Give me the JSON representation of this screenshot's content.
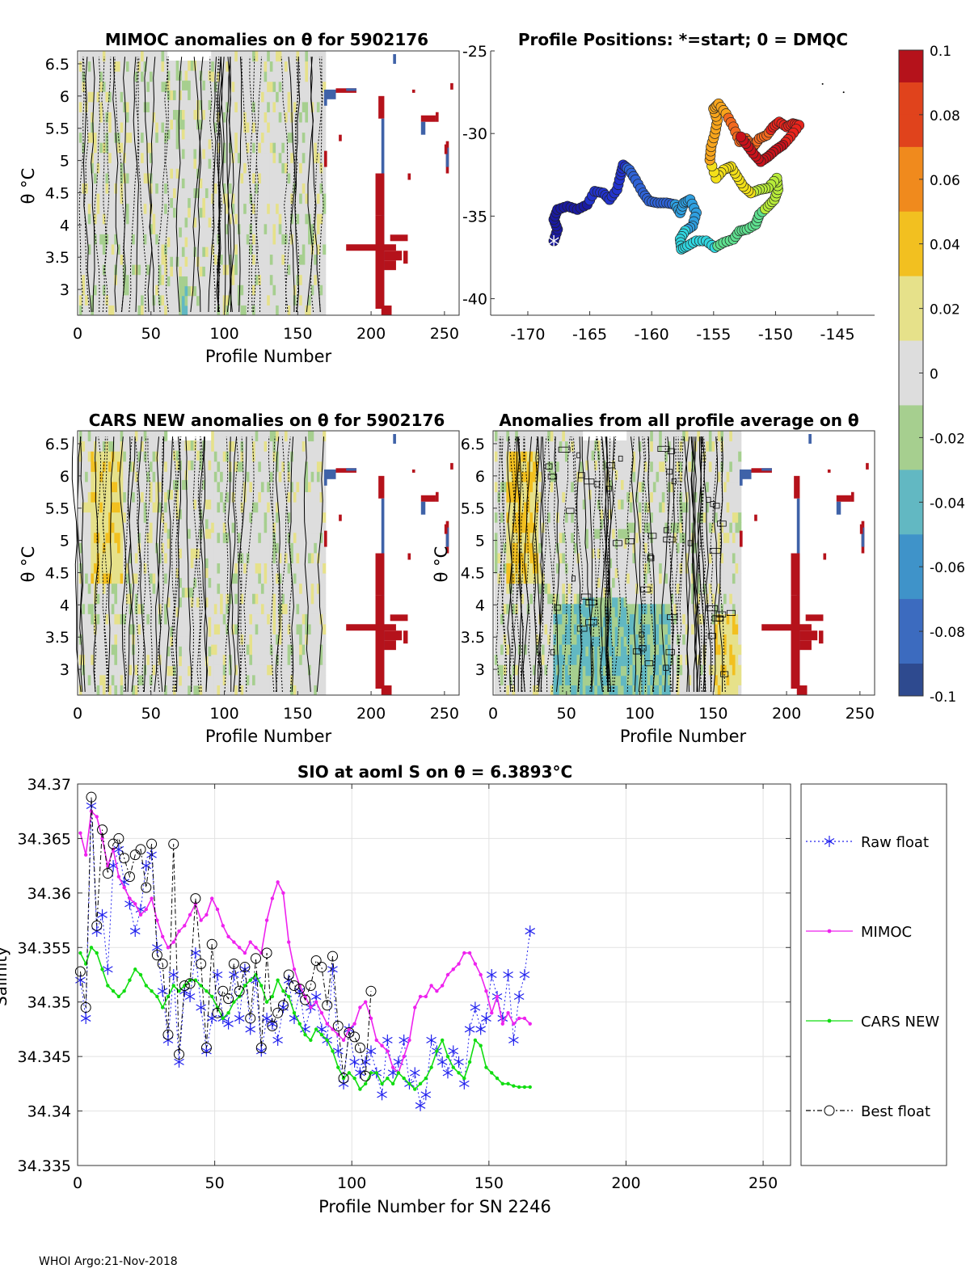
{
  "footer": "WHOI Argo:21-Nov-2018",
  "colorbar": {
    "ticks": [
      "0.1",
      "0.08",
      "0.06",
      "0.04",
      "0.02",
      "0",
      "-0.02",
      "-0.04",
      "-0.06",
      "-0.08",
      "-0.1"
    ],
    "colors": [
      "#2e4a8f",
      "#3c6bbf",
      "#3f93c9",
      "#62b8c2",
      "#a6cf8f",
      "#dddddd",
      "#e6e18a",
      "#f2c020",
      "#f08a1d",
      "#e0431c",
      "#b5121b"
    ]
  },
  "chart_data": [
    {
      "type": "heatmap",
      "id": "mimoc",
      "title": "MIMOC anomalies on θ  for 5902176",
      "xlabel": "Profile Number",
      "ylabel": "θ °C",
      "xlim": [
        0,
        260
      ],
      "ylim": [
        2.6,
        6.7
      ],
      "xticks": [
        0,
        50,
        100,
        150,
        200,
        250
      ],
      "yticks": [
        3,
        3.5,
        4,
        4.5,
        5,
        5.5,
        6,
        6.5
      ]
    },
    {
      "type": "scatter",
      "id": "positions",
      "title": "Profile Positions: *=start; 0 = DMQC",
      "xlim": [
        -173,
        -142
      ],
      "ylim": [
        -41,
        -25
      ],
      "xticks": [
        -170,
        -165,
        -160,
        -155,
        -150,
        -145
      ],
      "yticks": [
        -25,
        -30,
        -35,
        -40
      ],
      "track": [
        [
          -167.9,
          -36.5
        ],
        [
          -167.6,
          -35.8
        ],
        [
          -167.9,
          -35.2
        ],
        [
          -167.6,
          -34.6
        ],
        [
          -166.8,
          -34.4
        ],
        [
          -166.0,
          -34.6
        ],
        [
          -165.2,
          -34.3
        ],
        [
          -164.6,
          -33.5
        ],
        [
          -163.9,
          -33.6
        ],
        [
          -163.4,
          -34.0
        ],
        [
          -162.8,
          -33.4
        ],
        [
          -162.5,
          -32.5
        ],
        [
          -162.3,
          -31.9
        ],
        [
          -161.8,
          -32.2
        ],
        [
          -161.3,
          -32.8
        ],
        [
          -160.7,
          -33.6
        ],
        [
          -160.2,
          -34.1
        ],
        [
          -159.5,
          -34.2
        ],
        [
          -158.8,
          -34.2
        ],
        [
          -158.1,
          -34.3
        ],
        [
          -157.7,
          -34.8
        ],
        [
          -157.4,
          -34.2
        ],
        [
          -156.9,
          -34.0
        ],
        [
          -156.4,
          -34.8
        ],
        [
          -156.7,
          -35.6
        ],
        [
          -157.3,
          -35.9
        ],
        [
          -157.7,
          -36.4
        ],
        [
          -157.6,
          -37.0
        ],
        [
          -157.1,
          -36.8
        ],
        [
          -156.4,
          -36.5
        ],
        [
          -155.6,
          -36.5
        ],
        [
          -154.9,
          -36.9
        ],
        [
          -154.2,
          -36.6
        ],
        [
          -153.4,
          -36.4
        ],
        [
          -152.9,
          -35.9
        ],
        [
          -152.3,
          -35.8
        ],
        [
          -151.6,
          -35.5
        ],
        [
          -151.3,
          -34.9
        ],
        [
          -150.6,
          -34.4
        ],
        [
          -150.1,
          -34.0
        ],
        [
          -149.8,
          -33.4
        ],
        [
          -149.9,
          -32.7
        ],
        [
          -150.6,
          -33.3
        ],
        [
          -151.3,
          -33.4
        ],
        [
          -152.0,
          -33.6
        ],
        [
          -152.6,
          -33.2
        ],
        [
          -153.1,
          -32.6
        ],
        [
          -153.6,
          -32.0
        ],
        [
          -154.2,
          -32.2
        ],
        [
          -154.8,
          -32.7
        ],
        [
          -155.3,
          -31.6
        ],
        [
          -155.2,
          -30.8
        ],
        [
          -154.9,
          -30.0
        ],
        [
          -154.7,
          -29.2
        ],
        [
          -155.0,
          -28.5
        ],
        [
          -154.6,
          -28.2
        ],
        [
          -154.0,
          -28.8
        ],
        [
          -153.4,
          -29.6
        ],
        [
          -152.9,
          -30.5
        ],
        [
          -152.4,
          -30.3
        ],
        [
          -151.8,
          -30.8
        ],
        [
          -151.3,
          -30.3
        ],
        [
          -150.7,
          -30.1
        ],
        [
          -150.2,
          -29.6
        ],
        [
          -149.7,
          -29.3
        ],
        [
          -149.1,
          -29.6
        ],
        [
          -148.6,
          -29.4
        ],
        [
          -148.1,
          -29.5
        ],
        [
          -148.8,
          -30.2
        ],
        [
          -149.4,
          -30.7
        ],
        [
          -150.0,
          -31.0
        ],
        [
          -150.6,
          -31.4
        ],
        [
          -151.2,
          -31.7
        ],
        [
          -151.8,
          -31.2
        ],
        [
          -152.4,
          -30.6
        ],
        [
          -153.0,
          -30.0
        ]
      ]
    },
    {
      "type": "heatmap",
      "id": "cars",
      "title": "CARS NEW anomalies on θ for 5902176",
      "xlabel": "Profile Number",
      "ylabel": "θ °C",
      "xlim": [
        0,
        260
      ],
      "ylim": [
        2.6,
        6.7
      ],
      "xticks": [
        0,
        50,
        100,
        150,
        200,
        250
      ],
      "yticks": [
        3,
        3.5,
        4,
        4.5,
        5,
        5.5,
        6,
        6.5
      ]
    },
    {
      "type": "heatmap",
      "id": "allavg",
      "title": "Anomalies from all profile average on θ",
      "xlabel": "Profile Number",
      "ylabel": "θ °C",
      "xlim": [
        0,
        260
      ],
      "ylim": [
        2.6,
        6.7
      ],
      "xticks": [
        0,
        50,
        100,
        150,
        200,
        250
      ],
      "yticks": [
        3,
        3.5,
        4,
        4.5,
        5,
        5.5,
        6,
        6.5
      ]
    },
    {
      "type": "line",
      "id": "salinity",
      "title": "SIO at aoml S on θ = 6.3893°C",
      "xlabel": "Profile Number for SN 2246",
      "ylabel": "Salinity",
      "xlim": [
        0,
        260
      ],
      "ylim": [
        34.335,
        34.37
      ],
      "xticks": [
        0,
        50,
        100,
        150,
        200,
        250
      ],
      "yticks": [
        "34.335",
        "34.34",
        "34.345",
        "34.35",
        "34.355",
        "34.36",
        "34.365",
        "34.37"
      ],
      "series": [
        {
          "name": "Raw float",
          "color": "#2222ee",
          "x": [
            1,
            3,
            5,
            7,
            9,
            11,
            13,
            15,
            17,
            19,
            21,
            23,
            25,
            27,
            29,
            31,
            33,
            35,
            37,
            39,
            41,
            43,
            45,
            47,
            49,
            51,
            53,
            55,
            57,
            59,
            61,
            63,
            65,
            67,
            69,
            71,
            73,
            75,
            77,
            79,
            81,
            83,
            85,
            87,
            89,
            91,
            93,
            95,
            97,
            99,
            101,
            103,
            105,
            107,
            109,
            111,
            113,
            115,
            117,
            119,
            121,
            123,
            125,
            127,
            129,
            131,
            133,
            135,
            137,
            139,
            141,
            143,
            145,
            147,
            149,
            151,
            153,
            155,
            157,
            159,
            161,
            163,
            165
          ],
          "y": [
            34.352,
            34.3485,
            34.368,
            34.3565,
            34.358,
            34.353,
            34.3625,
            34.364,
            34.361,
            34.359,
            34.3565,
            34.3585,
            34.3625,
            34.3635,
            34.355,
            34.351,
            34.3465,
            34.3525,
            34.3445,
            34.351,
            34.3505,
            34.3545,
            34.3495,
            34.3455,
            34.3485,
            34.3525,
            34.3485,
            34.348,
            34.3525,
            34.3485,
            34.353,
            34.3475,
            34.352,
            34.3455,
            34.3485,
            34.348,
            34.3465,
            34.3495,
            34.352,
            34.3485,
            34.351,
            34.3475,
            34.3495,
            34.3505,
            34.3475,
            34.3465,
            34.353,
            34.3455,
            34.3425,
            34.3475,
            34.3445,
            34.3435,
            34.3445,
            34.3455,
            34.3435,
            34.3415,
            34.3465,
            34.3435,
            34.3445,
            34.3465,
            34.3425,
            34.3435,
            34.3405,
            34.3415,
            34.3465,
            34.3455,
            34.3445,
            34.3435,
            34.3455,
            34.3445,
            34.3425,
            34.3475,
            34.3495,
            34.3475,
            34.3485,
            34.3525,
            34.3505,
            34.3485,
            34.3525,
            34.3465,
            34.3505,
            34.3525,
            34.3565
          ]
        },
        {
          "name": "MIMOC",
          "color": "#ee22ee",
          "x": [
            1,
            3,
            5,
            7,
            9,
            11,
            13,
            15,
            17,
            19,
            21,
            23,
            25,
            27,
            29,
            31,
            33,
            35,
            37,
            39,
            41,
            43,
            45,
            47,
            49,
            51,
            53,
            55,
            57,
            59,
            61,
            63,
            65,
            67,
            69,
            71,
            73,
            75,
            77,
            79,
            81,
            83,
            85,
            87,
            89,
            91,
            93,
            95,
            97,
            99,
            101,
            103,
            105,
            107,
            109,
            111,
            113,
            115,
            117,
            119,
            121,
            123,
            125,
            127,
            129,
            131,
            133,
            135,
            137,
            139,
            141,
            143,
            145,
            147,
            149,
            151,
            153,
            155,
            157,
            159,
            161,
            163,
            165
          ],
          "y": [
            34.3655,
            34.3635,
            34.3675,
            34.367,
            34.365,
            34.3625,
            34.364,
            34.3615,
            34.3605,
            34.3595,
            34.359,
            34.358,
            34.3585,
            34.3595,
            34.3575,
            34.356,
            34.355,
            34.3555,
            34.3565,
            34.357,
            34.358,
            34.359,
            34.3575,
            34.358,
            34.3595,
            34.3585,
            34.357,
            34.356,
            34.3555,
            34.355,
            34.3545,
            34.3555,
            34.355,
            34.3545,
            34.3575,
            34.3595,
            34.361,
            34.36,
            34.3555,
            34.353,
            34.3515,
            34.3505,
            34.3495,
            34.35,
            34.349,
            34.348,
            34.3475,
            34.347,
            34.3465,
            34.3475,
            34.348,
            34.3495,
            34.35,
            34.3485,
            34.3465,
            34.346,
            34.3455,
            34.344,
            34.3435,
            34.345,
            34.3465,
            34.3495,
            34.3505,
            34.3505,
            34.3515,
            34.351,
            34.3515,
            34.3525,
            34.353,
            34.3535,
            34.3545,
            34.3545,
            34.3535,
            34.3525,
            34.351,
            34.349,
            34.3505,
            34.348,
            34.349,
            34.348,
            34.3485,
            34.3485,
            34.348
          ]
        },
        {
          "name": "CARS NEW",
          "color": "#11dd11",
          "x": [
            1,
            3,
            5,
            7,
            9,
            11,
            13,
            15,
            17,
            19,
            21,
            23,
            25,
            27,
            29,
            31,
            33,
            35,
            37,
            39,
            41,
            43,
            45,
            47,
            49,
            51,
            53,
            55,
            57,
            59,
            61,
            63,
            65,
            67,
            69,
            71,
            73,
            75,
            77,
            79,
            81,
            83,
            85,
            87,
            89,
            91,
            93,
            95,
            97,
            99,
            101,
            103,
            105,
            107,
            109,
            111,
            113,
            115,
            117,
            119,
            121,
            123,
            125,
            127,
            129,
            131,
            133,
            135,
            137,
            139,
            141,
            143,
            145,
            147,
            149,
            151,
            153,
            155,
            157,
            159,
            161,
            163,
            165
          ],
          "y": [
            34.3545,
            34.3535,
            34.355,
            34.3545,
            34.353,
            34.3515,
            34.351,
            34.3505,
            34.351,
            34.352,
            34.353,
            34.3525,
            34.3515,
            34.351,
            34.3505,
            34.3495,
            34.3505,
            34.3515,
            34.351,
            34.3515,
            34.352,
            34.352,
            34.3515,
            34.351,
            34.3505,
            34.3495,
            34.3485,
            34.349,
            34.35,
            34.3505,
            34.3515,
            34.352,
            34.3525,
            34.3515,
            34.35,
            34.3505,
            34.352,
            34.351,
            34.3505,
            34.349,
            34.348,
            34.347,
            34.3465,
            34.3475,
            34.347,
            34.3465,
            34.3455,
            34.344,
            34.343,
            34.3435,
            34.343,
            34.342,
            34.3425,
            34.3435,
            34.3435,
            34.3425,
            34.343,
            34.3425,
            34.3435,
            34.343,
            34.3425,
            34.342,
            34.3425,
            34.343,
            34.344,
            34.3455,
            34.3465,
            34.345,
            34.344,
            34.3435,
            34.343,
            34.3445,
            34.3465,
            34.346,
            34.344,
            34.3435,
            34.343,
            34.3425,
            34.3425,
            34.3423,
            34.3422,
            34.3422,
            34.3422
          ]
        },
        {
          "name": "Best float",
          "color": "#000000",
          "x": [
            1,
            3,
            5,
            7,
            9,
            11,
            13,
            15,
            17,
            19,
            21,
            23,
            25,
            27,
            29,
            31,
            33,
            35,
            37,
            39,
            41,
            43,
            45,
            47,
            49,
            51,
            53,
            55,
            57,
            59,
            61,
            63,
            65,
            67,
            69,
            71,
            73,
            75,
            77,
            79,
            81,
            83,
            85,
            87,
            89,
            91,
            93,
            95,
            97,
            99,
            101,
            103,
            105,
            107
          ],
          "y": [
            34.3528,
            34.3495,
            34.3688,
            34.357,
            34.3658,
            34.3618,
            34.3645,
            34.365,
            34.3632,
            34.3615,
            34.3635,
            34.364,
            34.3605,
            34.3645,
            34.3543,
            34.3535,
            34.347,
            34.3645,
            34.3452,
            34.3515,
            34.3517,
            34.3595,
            34.3535,
            34.3458,
            34.3553,
            34.349,
            34.351,
            34.3503,
            34.3535,
            34.351,
            34.3532,
            34.3485,
            34.354,
            34.3458,
            34.3545,
            34.3478,
            34.349,
            34.3497,
            34.3525,
            34.3515,
            34.3512,
            34.3502,
            34.3515,
            34.3538,
            34.3532,
            34.3497,
            34.3542,
            34.3478,
            34.343,
            34.3472,
            34.3468,
            34.3458,
            34.3432,
            34.351
          ]
        }
      ],
      "legend": [
        "Raw float",
        "MIMOC",
        "CARS NEW",
        "Best float"
      ]
    }
  ]
}
